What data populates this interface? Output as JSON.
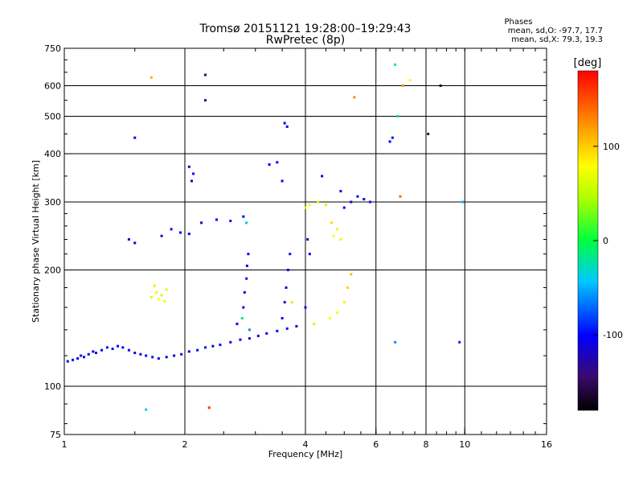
{
  "header": {
    "title": "Tromsø 20151121 19:28:00–19:29:43",
    "subtitle": "RwPretec (8p)"
  },
  "stats": {
    "heading": "Phases",
    "line_o": "mean, sd,O: -97.7, 17.7",
    "line_x": "mean, sd,X:  79.3, 19.3"
  },
  "colorbar": {
    "label": "[deg]",
    "range": [
      -180,
      180
    ],
    "ticks": [
      100,
      0,
      -100
    ],
    "tick_labels": [
      "100",
      "0",
      "-100"
    ]
  },
  "chart_data": {
    "type": "scatter",
    "xlabel": "Frequency [MHz]",
    "ylabel": "Stationary phase Virtual Height [km]",
    "xscale": "log",
    "yscale": "log",
    "xlim": [
      1,
      16
    ],
    "ylim": [
      75,
      750
    ],
    "x_ticks": [
      1,
      2,
      4,
      6,
      8,
      10,
      16
    ],
    "x_tick_labels": [
      "1",
      "2",
      "4",
      "6",
      "8",
      "10",
      "16"
    ],
    "x_gridlines": [
      2,
      4,
      6,
      8,
      10
    ],
    "y_ticks": [
      75,
      100,
      200,
      300,
      400,
      500,
      600,
      750
    ],
    "y_tick_labels": [
      "75",
      "100",
      "200",
      "300",
      "400",
      "500",
      "600",
      "750"
    ],
    "y_gridlines": [
      100,
      200,
      300,
      400,
      500,
      600
    ],
    "point_color_scale": "phase in degrees (rainbow, -180 black to 180 red)",
    "series": [
      {
        "points": [
          {
            "f": 1.02,
            "h": 116,
            "phase": -110
          },
          {
            "f": 1.05,
            "h": 117,
            "phase": -100
          },
          {
            "f": 1.08,
            "h": 118,
            "phase": -105
          },
          {
            "f": 1.1,
            "h": 120,
            "phase": -95
          },
          {
            "f": 1.12,
            "h": 119,
            "phase": -110
          },
          {
            "f": 1.15,
            "h": 121,
            "phase": -100
          },
          {
            "f": 1.18,
            "h": 123,
            "phase": -105
          },
          {
            "f": 1.2,
            "h": 122,
            "phase": -115
          },
          {
            "f": 1.24,
            "h": 124,
            "phase": -100
          },
          {
            "f": 1.28,
            "h": 126,
            "phase": -95
          },
          {
            "f": 1.32,
            "h": 125,
            "phase": -110
          },
          {
            "f": 1.36,
            "h": 127,
            "phase": -100
          },
          {
            "f": 1.4,
            "h": 126,
            "phase": -105
          },
          {
            "f": 1.45,
            "h": 124,
            "phase": -100
          },
          {
            "f": 1.5,
            "h": 122,
            "phase": -110
          },
          {
            "f": 1.55,
            "h": 121,
            "phase": -105
          },
          {
            "f": 1.6,
            "h": 120,
            "phase": -100
          },
          {
            "f": 1.66,
            "h": 119,
            "phase": -95
          },
          {
            "f": 1.72,
            "h": 118,
            "phase": -110
          },
          {
            "f": 1.8,
            "h": 119,
            "phase": -105
          },
          {
            "f": 1.88,
            "h": 120,
            "phase": -100
          },
          {
            "f": 1.96,
            "h": 121,
            "phase": -110
          },
          {
            "f": 2.05,
            "h": 123,
            "phase": -100
          },
          {
            "f": 2.15,
            "h": 124,
            "phase": -105
          },
          {
            "f": 2.25,
            "h": 126,
            "phase": -95
          },
          {
            "f": 2.35,
            "h": 127,
            "phase": -110
          },
          {
            "f": 2.45,
            "h": 128,
            "phase": -100
          },
          {
            "f": 2.6,
            "h": 130,
            "phase": -105
          },
          {
            "f": 2.75,
            "h": 132,
            "phase": -100
          },
          {
            "f": 2.9,
            "h": 133,
            "phase": -110
          },
          {
            "f": 3.05,
            "h": 135,
            "phase": -100
          },
          {
            "f": 3.2,
            "h": 137,
            "phase": -105
          },
          {
            "f": 3.4,
            "h": 139,
            "phase": -100
          },
          {
            "f": 3.6,
            "h": 141,
            "phase": -95
          },
          {
            "f": 3.8,
            "h": 143,
            "phase": -110
          },
          {
            "f": 1.65,
            "h": 170,
            "phase": 60
          },
          {
            "f": 1.7,
            "h": 175,
            "phase": 70
          },
          {
            "f": 1.72,
            "h": 168,
            "phase": 80
          },
          {
            "f": 1.75,
            "h": 172,
            "phase": 55
          },
          {
            "f": 1.78,
            "h": 166,
            "phase": 75
          },
          {
            "f": 1.8,
            "h": 178,
            "phase": 65
          },
          {
            "f": 1.68,
            "h": 182,
            "phase": 90
          },
          {
            "f": 2.8,
            "h": 160,
            "phase": -100
          },
          {
            "f": 2.82,
            "h": 175,
            "phase": -105
          },
          {
            "f": 2.85,
            "h": 190,
            "phase": -95
          },
          {
            "f": 2.86,
            "h": 205,
            "phase": -110
          },
          {
            "f": 2.88,
            "h": 220,
            "phase": -100
          },
          {
            "f": 2.78,
            "h": 150,
            "phase": -20
          },
          {
            "f": 2.9,
            "h": 140,
            "phase": -60
          },
          {
            "f": 2.7,
            "h": 145,
            "phase": -100
          },
          {
            "f": 3.5,
            "h": 150,
            "phase": -100
          },
          {
            "f": 3.55,
            "h": 165,
            "phase": -105
          },
          {
            "f": 3.58,
            "h": 180,
            "phase": -110
          },
          {
            "f": 3.62,
            "h": 200,
            "phase": -100
          },
          {
            "f": 3.66,
            "h": 220,
            "phase": -95
          },
          {
            "f": 3.7,
            "h": 165,
            "phase": 90
          },
          {
            "f": 1.75,
            "h": 245,
            "phase": -110
          },
          {
            "f": 1.85,
            "h": 255,
            "phase": -100
          },
          {
            "f": 1.95,
            "h": 250,
            "phase": -105
          },
          {
            "f": 2.05,
            "h": 248,
            "phase": -100
          },
          {
            "f": 2.2,
            "h": 265,
            "phase": -110
          },
          {
            "f": 2.4,
            "h": 270,
            "phase": -100
          },
          {
            "f": 2.6,
            "h": 268,
            "phase": -95
          },
          {
            "f": 2.8,
            "h": 275,
            "phase": -105
          },
          {
            "f": 2.85,
            "h": 265,
            "phase": -40
          },
          {
            "f": 2.05,
            "h": 370,
            "phase": -110
          },
          {
            "f": 2.1,
            "h": 355,
            "phase": -100
          },
          {
            "f": 2.08,
            "h": 340,
            "phase": -105
          },
          {
            "f": 3.25,
            "h": 375,
            "phase": -100
          },
          {
            "f": 3.4,
            "h": 380,
            "phase": -110
          },
          {
            "f": 3.5,
            "h": 340,
            "phase": -105
          },
          {
            "f": 3.55,
            "h": 480,
            "phase": -110
          },
          {
            "f": 3.6,
            "h": 470,
            "phase": -100
          },
          {
            "f": 4.0,
            "h": 290,
            "phase": 70
          },
          {
            "f": 4.1,
            "h": 295,
            "phase": 80
          },
          {
            "f": 4.3,
            "h": 300,
            "phase": 60
          },
          {
            "f": 4.5,
            "h": 295,
            "phase": 90
          },
          {
            "f": 4.7,
            "h": 245,
            "phase": 75
          },
          {
            "f": 4.8,
            "h": 255,
            "phase": 85
          },
          {
            "f": 4.9,
            "h": 240,
            "phase": 65
          },
          {
            "f": 4.65,
            "h": 265,
            "phase": 95
          },
          {
            "f": 5.0,
            "h": 290,
            "phase": -100
          },
          {
            "f": 5.2,
            "h": 300,
            "phase": -110
          },
          {
            "f": 5.4,
            "h": 310,
            "phase": -105
          },
          {
            "f": 5.6,
            "h": 305,
            "phase": -100
          },
          {
            "f": 5.8,
            "h": 300,
            "phase": -95
          },
          {
            "f": 4.05,
            "h": 240,
            "phase": -110
          },
          {
            "f": 4.1,
            "h": 220,
            "phase": -100
          },
          {
            "f": 4.4,
            "h": 350,
            "phase": -105
          },
          {
            "f": 4.9,
            "h": 320,
            "phase": -100
          },
          {
            "f": 4.6,
            "h": 150,
            "phase": 80
          },
          {
            "f": 4.8,
            "h": 155,
            "phase": 75
          },
          {
            "f": 5.0,
            "h": 165,
            "phase": 85
          },
          {
            "f": 5.1,
            "h": 180,
            "phase": 95
          },
          {
            "f": 5.2,
            "h": 195,
            "phase": 105
          },
          {
            "f": 4.2,
            "h": 145,
            "phase": 90
          },
          {
            "f": 4.0,
            "h": 160,
            "phase": -100
          },
          {
            "f": 6.5,
            "h": 430,
            "phase": -105
          },
          {
            "f": 6.6,
            "h": 440,
            "phase": -95
          },
          {
            "f": 6.8,
            "h": 500,
            "phase": -20
          },
          {
            "f": 7.0,
            "h": 600,
            "phase": 120
          },
          {
            "f": 7.3,
            "h": 620,
            "phase": 80
          },
          {
            "f": 8.7,
            "h": 600,
            "phase": -170
          },
          {
            "f": 6.7,
            "h": 680,
            "phase": -10
          },
          {
            "f": 5.3,
            "h": 560,
            "phase": 130
          },
          {
            "f": 2.25,
            "h": 640,
            "phase": -150
          },
          {
            "f": 2.25,
            "h": 550,
            "phase": -140
          },
          {
            "f": 1.65,
            "h": 630,
            "phase": 110
          },
          {
            "f": 1.5,
            "h": 440,
            "phase": -110
          },
          {
            "f": 1.45,
            "h": 240,
            "phase": -110
          },
          {
            "f": 1.5,
            "h": 235,
            "phase": -100
          },
          {
            "f": 2.3,
            "h": 88,
            "phase": 160
          },
          {
            "f": 1.6,
            "h": 87,
            "phase": -40
          },
          {
            "f": 9.7,
            "h": 130,
            "phase": -90
          },
          {
            "f": 6.7,
            "h": 130,
            "phase": -60
          },
          {
            "f": 9.9,
            "h": 300,
            "phase": -50
          },
          {
            "f": 8.1,
            "h": 450,
            "phase": -150
          },
          {
            "f": 6.9,
            "h": 310,
            "phase": 140
          }
        ]
      }
    ]
  }
}
